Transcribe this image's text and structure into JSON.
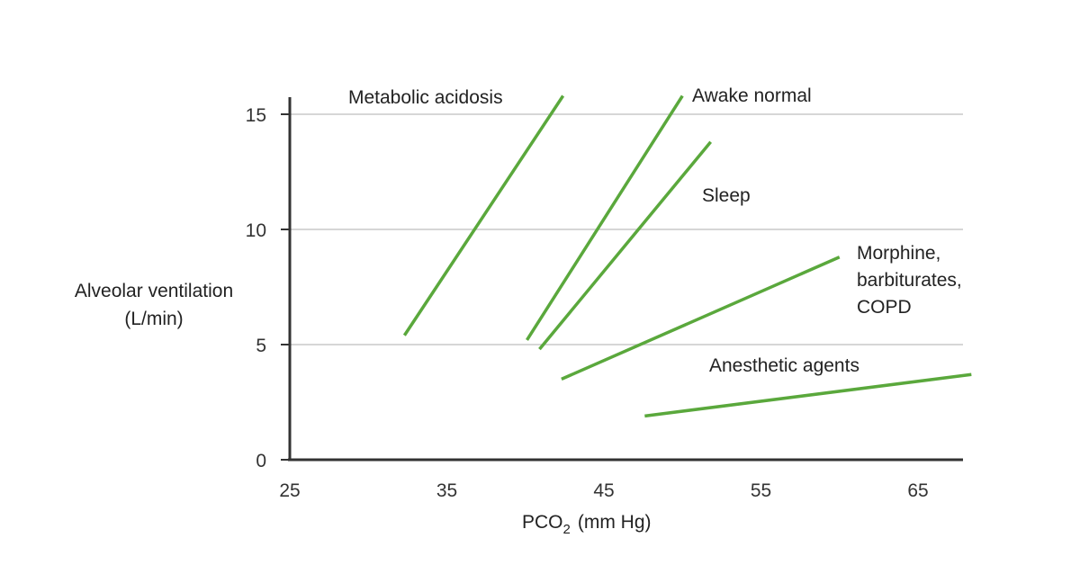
{
  "chart_data": {
    "type": "line",
    "xlabel": "PCO",
    "xlabel_subscript": "2",
    "xlabel_unit": "(mm Hg)",
    "ylabel": [
      "Alveolar ventilation",
      "(L/min)"
    ],
    "xlim": [
      25,
      67.9
    ],
    "ylim": [
      0,
      15.7
    ],
    "xticks": [
      25,
      35,
      45,
      55,
      65
    ],
    "yticks": [
      0,
      5,
      10,
      15
    ],
    "grid": "horizontal",
    "line_color": "#5aa83c",
    "series": [
      {
        "name": "Metabolic acidosis",
        "x": [
          32.3,
          42.4
        ],
        "y": [
          5.4,
          15.8
        ]
      },
      {
        "name": "Awake normal",
        "x": [
          40.1,
          50.0
        ],
        "y": [
          5.2,
          15.8
        ]
      },
      {
        "name": "Sleep",
        "x": [
          40.9,
          51.8
        ],
        "y": [
          4.8,
          13.8
        ]
      },
      {
        "name": "Morphine, barbiturates, COPD",
        "x": [
          42.3,
          60.0
        ],
        "y": [
          3.5,
          8.8
        ]
      },
      {
        "name": "Anesthetic agents",
        "x": [
          47.6,
          68.4
        ],
        "y": [
          1.9,
          3.7
        ]
      }
    ]
  }
}
